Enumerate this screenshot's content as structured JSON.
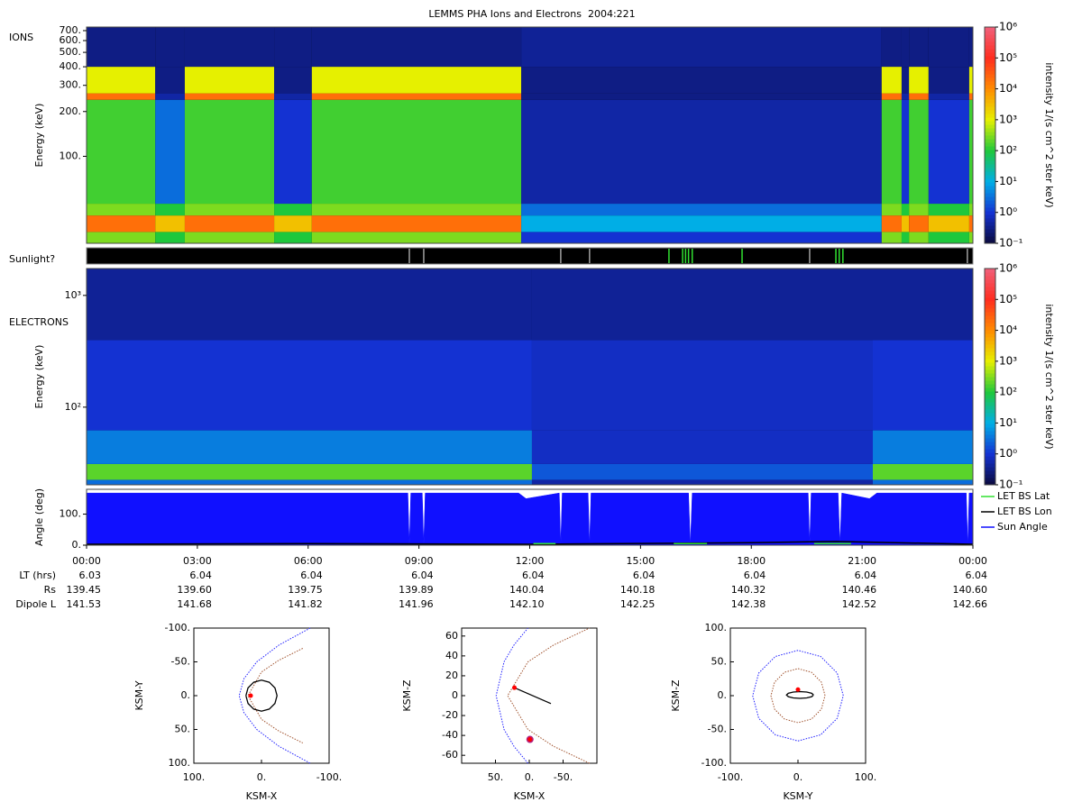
{
  "chart_data": [
    {
      "type": "heatmap",
      "title": "LEMMS PHA Ions and Electrons  2004:221",
      "label": "IONS",
      "ylabel": "Energy (keV)",
      "log_y": true,
      "xlim": [
        0,
        24
      ],
      "ylim": [
        26,
        740
      ],
      "yticks": [
        {
          "value": 100,
          "label": "100."
        },
        {
          "value": 200,
          "label": "200."
        },
        {
          "value": 300,
          "label": "300."
        },
        {
          "value": 400,
          "label": "400."
        },
        {
          "value": 500,
          "label": "500."
        },
        {
          "value": 600,
          "label": "600."
        },
        {
          "value": 700,
          "label": "700."
        }
      ],
      "time_bins": [
        0,
        1.86,
        2.66,
        5.08,
        6.1,
        11.77,
        21.53,
        22.07,
        22.27,
        22.8,
        23.9,
        24
      ],
      "energy_bins": [
        26,
        31,
        40,
        48,
        240,
        265,
        400,
        740
      ],
      "values": [
        [
          300,
          20000,
          300,
          150,
          20000,
          1000,
          0.3
        ],
        [
          100,
          3000,
          100,
          3,
          0.5,
          0.3,
          0.3
        ],
        [
          300,
          20000,
          300,
          150,
          20000,
          1000,
          0.3
        ],
        [
          100,
          3000,
          100,
          1,
          0.5,
          0.3,
          0.3
        ],
        [
          300,
          20000,
          300,
          150,
          20000,
          1000,
          0.3
        ],
        [
          1,
          10,
          3,
          0.5,
          0.3,
          0.3,
          0.4
        ],
        [
          300,
          20000,
          300,
          150,
          20000,
          1000,
          0.3
        ],
        [
          100,
          3000,
          100,
          1,
          0.5,
          0.3,
          0.3
        ],
        [
          300,
          20000,
          300,
          150,
          20000,
          1000,
          0.3
        ],
        [
          100,
          3000,
          100,
          1,
          0.5,
          0.3,
          0.3
        ],
        [
          300,
          20000,
          300,
          150,
          20000,
          1000,
          0.3
        ]
      ],
      "colorbar": {
        "label": "intensity 1/(s cm^2 ster keV)",
        "lim": [
          0.1,
          1000000
        ],
        "colormap": [
          "#0a0a3c",
          "#1432d2",
          "#00aee6",
          "#1ec83c",
          "#e6f000",
          "#ff8c00",
          "#ff2d1e",
          "#f0607a"
        ],
        "ticks": [
          {
            "value": 0.1,
            "label": "10⁻¹"
          },
          {
            "value": 1,
            "label": "10⁰"
          },
          {
            "value": 10,
            "label": "10¹"
          },
          {
            "value": 100,
            "label": "10²"
          },
          {
            "value": 1000,
            "label": "10³"
          },
          {
            "value": 10000,
            "label": "10⁴"
          },
          {
            "value": 100000,
            "label": "10⁵"
          },
          {
            "value": 1000000,
            "label": "10⁶"
          }
        ]
      }
    },
    {
      "type": "strip",
      "label": "Sunlight?",
      "xlim": [
        0,
        24
      ],
      "series": [
        {
          "color": "#a0a0a0",
          "x": [
            8.74,
            9.13,
            12.84,
            13.62,
            19.58,
            23.85
          ]
        },
        {
          "color": "#30e030",
          "x": [
            15.77,
            16.14,
            16.22,
            16.3,
            16.4,
            17.75,
            20.29,
            20.38,
            20.48
          ]
        }
      ]
    },
    {
      "type": "heatmap",
      "label": "ELECTRONS",
      "ylabel": "Energy (keV)",
      "log_y": true,
      "xlim": [
        0,
        24
      ],
      "ylim": [
        20.2,
        1740
      ],
      "yticks": [
        {
          "value": 100,
          "label": "10²"
        },
        {
          "value": 1000,
          "label": "10³"
        }
      ],
      "time_bins": [
        0,
        12.06,
        21.29,
        24
      ],
      "energy_bins": [
        20.2,
        22.4,
        31,
        62,
        400,
        1740
      ],
      "values": [
        [
          3,
          200,
          4,
          1,
          0.4
        ],
        [
          0.5,
          2,
          0.8,
          0.8,
          0.4
        ],
        [
          3,
          200,
          4,
          1,
          0.4
        ]
      ],
      "colorbar": {
        "label": "intensity 1/(s cm^2 ster keV)",
        "lim": [
          0.1,
          1000000
        ],
        "colormap": [
          "#0a0a3c",
          "#1432d2",
          "#00aee6",
          "#1ec83c",
          "#e6f000",
          "#ff8c00",
          "#ff2d1e",
          "#f0607a"
        ],
        "ticks": [
          {
            "value": 0.1,
            "label": "10⁻¹"
          },
          {
            "value": 1,
            "label": "10⁰"
          },
          {
            "value": 10,
            "label": "10¹"
          },
          {
            "value": 100,
            "label": "10²"
          },
          {
            "value": 1000,
            "label": "10³"
          },
          {
            "value": 10000,
            "label": "10⁴"
          },
          {
            "value": 100000,
            "label": "10⁵"
          },
          {
            "value": 1000000,
            "label": "10⁶"
          }
        ]
      }
    },
    {
      "type": "line",
      "ylabel": "Angle (deg)",
      "xlim": [
        0,
        24
      ],
      "ylim": [
        0,
        180
      ],
      "yticks": [
        {
          "value": 0,
          "label": "0."
        },
        {
          "value": 100,
          "label": "100."
        }
      ],
      "xticks": [
        {
          "value": 0,
          "label": "00:00"
        },
        {
          "value": 3,
          "label": "03:00"
        },
        {
          "value": 6,
          "label": "06:00"
        },
        {
          "value": 9,
          "label": "09:00"
        },
        {
          "value": 12,
          "label": "12:00"
        },
        {
          "value": 15,
          "label": "15:00"
        },
        {
          "value": 18,
          "label": "18:00"
        },
        {
          "value": 21,
          "label": "21:00"
        },
        {
          "value": 24,
          "label": "00:00"
        }
      ],
      "series": [
        {
          "name": "LET BS Lat",
          "color": "#30e030",
          "x": [
            12.1,
            12.7,
            12.75,
            15.9,
            16.8,
            16.85,
            19.7,
            20.7
          ],
          "values": [
            5,
            5,
            null,
            5,
            5,
            null,
            5,
            5
          ]
        },
        {
          "name": "LET BS Lon",
          "color": "#000000",
          "x": [
            0,
            6,
            12,
            18,
            20.3,
            24
          ],
          "values": [
            3,
            5,
            3,
            8,
            12,
            3
          ]
        },
        {
          "name": "Sun Angle",
          "color": "#1010ff",
          "area": true,
          "x": [
            0,
            8.7,
            8.74,
            8.78,
            9.09,
            9.13,
            9.17,
            11.7,
            11.9,
            12.8,
            12.84,
            12.88,
            13.58,
            13.62,
            13.66,
            16.3,
            16.35,
            16.4,
            19.54,
            19.58,
            19.62,
            20.35,
            20.4,
            20.45,
            21.2,
            21.4,
            23.82,
            23.86,
            23.9,
            24
          ],
          "values": [
            168,
            168,
            0,
            168,
            168,
            0,
            168,
            168,
            150,
            168,
            0,
            168,
            168,
            0,
            168,
            168,
            0,
            168,
            168,
            0,
            168,
            168,
            0,
            168,
            150,
            168,
            168,
            0,
            168,
            168
          ]
        }
      ],
      "ephemeris": [
        {
          "name": "LT (hrs)",
          "values": [
            6.03,
            6.04,
            6.04,
            6.04,
            6.04,
            6.04,
            6.04,
            6.04,
            6.04
          ]
        },
        {
          "name": "Rs",
          "values": [
            139.45,
            {
              "value": 139.6,
              "label": "139.60"
            },
            139.75,
            139.89,
            140.04,
            140.18,
            140.32,
            140.46,
            {
              "value": 140.6,
              "label": "140.60"
            }
          ]
        },
        {
          "name": "Dipole L",
          "values": [
            141.53,
            141.68,
            141.82,
            141.96,
            {
              "value": 142.1,
              "label": "142.10"
            },
            142.25,
            142.38,
            142.52,
            142.66
          ]
        }
      ]
    },
    {
      "type": "orbit",
      "xlabel": "KSM-X",
      "ylabel": "KSM-Y",
      "xlim": [
        100,
        -100
      ],
      "ylim": [
        100,
        -100
      ],
      "xticks": [
        {
          "value": 100,
          "label": "100."
        },
        {
          "value": 0,
          "label": "0."
        },
        {
          "value": -100,
          "label": "-100."
        }
      ],
      "yticks": [
        {
          "value": -100,
          "label": "-100."
        },
        {
          "value": -50,
          "label": "-50."
        },
        {
          "value": 0,
          "label": "0."
        },
        {
          "value": 50,
          "label": "50."
        },
        {
          "value": 100,
          "label": "100."
        }
      ],
      "series": [
        {
          "color": "#2020ff",
          "style": "dotted",
          "x": [
            -72,
            -26,
            7,
            26,
            33,
            26,
            7,
            -26,
            -72
          ],
          "y": [
            -100,
            -75,
            -50,
            -25,
            0,
            25,
            50,
            75,
            100
          ]
        },
        {
          "color": "#a0522d",
          "style": "dotted",
          "x": [
            -61,
            -25,
            0,
            20,
            0,
            -25,
            -61
          ],
          "y": [
            -70,
            -52,
            -35,
            0,
            35,
            52,
            70
          ]
        },
        {
          "color": "#000000",
          "style": "solid",
          "x": [
            23,
            19.9,
            11.5,
            0,
            -11.5,
            -19.9,
            -23,
            -19.9,
            -11.5,
            0,
            11.5,
            19.9,
            23
          ],
          "y": [
            0,
            11.5,
            19.9,
            23,
            19.9,
            11.5,
            0,
            -11.5,
            -19.9,
            -23,
            -19.9,
            -11.5,
            0
          ]
        }
      ],
      "points": [
        {
          "color": "#ff0000",
          "x": 16,
          "y": 0
        }
      ]
    },
    {
      "type": "orbit",
      "xlabel": "KSM-X",
      "ylabel": "KSM-Z",
      "xlim": [
        100,
        -100
      ],
      "ylim": [
        -68,
        68
      ],
      "xticks": [
        {
          "value": 50,
          "label": "50."
        },
        {
          "value": 0,
          "label": "0."
        },
        {
          "value": -50,
          "label": "-50."
        }
      ],
      "yticks": [
        60,
        40,
        20,
        0,
        -20,
        -40,
        -60
      ],
      "series": [
        {
          "color": "#2020ff",
          "style": "dotted",
          "x": [
            2,
            22.6,
            37.3,
            49,
            37.3,
            22.6,
            2
          ],
          "y": [
            -68,
            -51,
            -34,
            0,
            34,
            51,
            68
          ]
        },
        {
          "color": "#a0522d",
          "style": "dotted",
          "x": [
            -89,
            -36,
            2,
            32,
            2,
            -36,
            -89
          ],
          "y": [
            -68,
            -51,
            -34,
            0,
            34,
            51,
            68
          ]
        },
        {
          "color": "#000000",
          "style": "solid",
          "x": [
            22,
            -32
          ],
          "y": [
            8,
            -8
          ]
        }
      ],
      "points": [
        {
          "color": "#ff0000",
          "x": 22,
          "y": 8
        },
        {
          "color": "#b02080",
          "x": -1,
          "y": -44
        },
        {
          "color": "#ff0000",
          "x": -1,
          "y": -44
        }
      ]
    },
    {
      "type": "orbit",
      "xlabel": "KSM-Y",
      "ylabel": "KSM-Z",
      "xlim": [
        -100,
        100
      ],
      "ylim": [
        -100,
        100
      ],
      "xticks": [
        {
          "value": -100,
          "label": "-100."
        },
        {
          "value": 0,
          "label": "0."
        },
        {
          "value": 100,
          "label": "100."
        }
      ],
      "yticks": [
        {
          "value": -100,
          "label": "-100."
        },
        {
          "value": -50,
          "label": "-50."
        },
        {
          "value": 0,
          "label": "0."
        },
        {
          "value": 50,
          "label": "50."
        },
        {
          "value": 100,
          "label": "100."
        }
      ],
      "series": [
        {
          "color": "#2020ff",
          "style": "dotted",
          "x": [
            67,
            58,
            33.5,
            0,
            -33.5,
            -58,
            -67,
            -58,
            -33.5,
            0,
            33.5,
            58,
            67
          ],
          "y": [
            0,
            33.5,
            58,
            67,
            58,
            33.5,
            0,
            -33.5,
            -58,
            -67,
            -58,
            -33.5,
            0
          ]
        },
        {
          "color": "#a0522d",
          "style": "dotted",
          "x": [
            40,
            34.6,
            20,
            0,
            -20,
            -34.6,
            -40,
            -34.6,
            -20,
            0,
            20,
            34.6,
            40
          ],
          "y": [
            0,
            20,
            34.6,
            40,
            34.6,
            20,
            0,
            -20,
            -34.6,
            -40,
            -34.6,
            -20,
            0
          ]
        },
        {
          "color": "#000000",
          "style": "solid",
          "x": [
            23,
            20.3,
            13,
            3,
            -7,
            -14.3,
            -17,
            -14.3,
            -7,
            3,
            13,
            20.3,
            23
          ],
          "y": [
            1,
            3.5,
            5.3,
            6,
            5.3,
            3.5,
            1,
            -1.5,
            -3.3,
            -4,
            -3.3,
            -1.5,
            1
          ]
        }
      ],
      "points": [
        {
          "color": "#ff0000",
          "x": 0,
          "y": 9
        }
      ]
    }
  ]
}
